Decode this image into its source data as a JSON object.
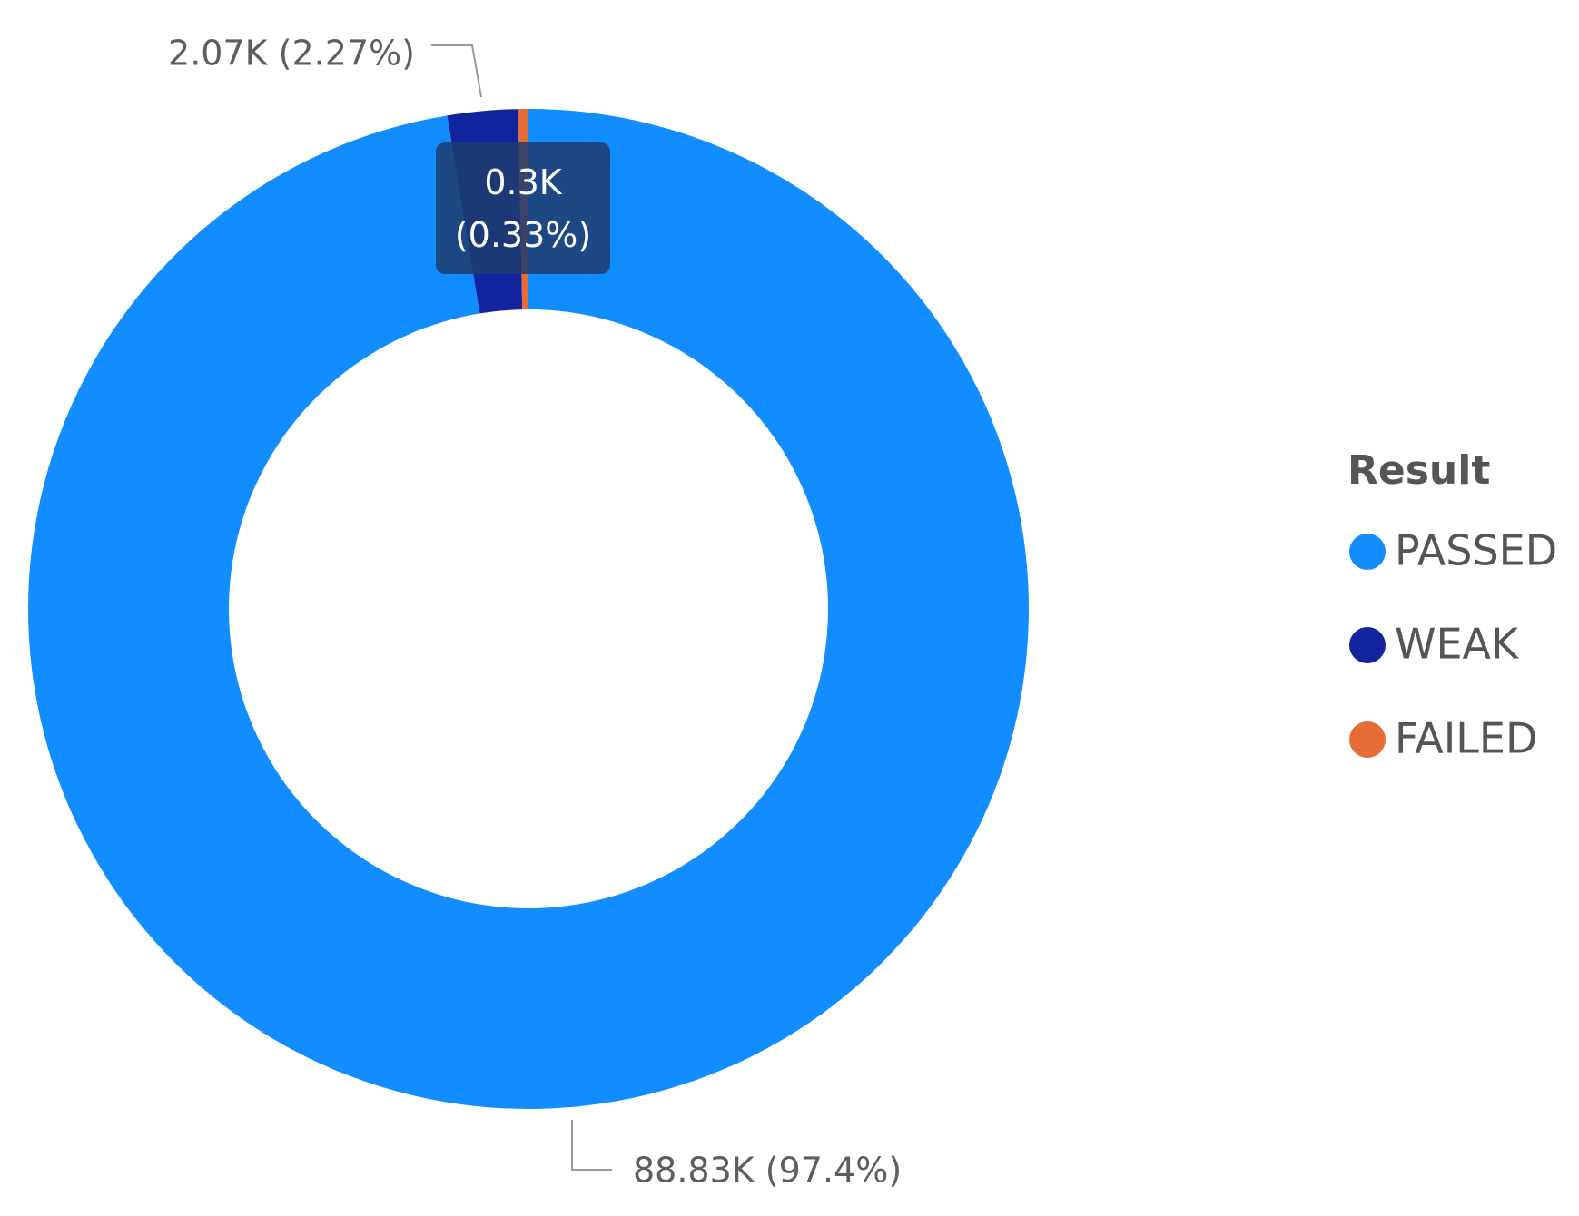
{
  "chart_data": {
    "type": "donut",
    "legend_title": "Result",
    "categories": [
      "PASSED",
      "WEAK",
      "FAILED"
    ],
    "values": [
      88830,
      2070,
      300
    ],
    "value_labels": [
      "88.83K (97.4%)",
      "2.07K (2.27%)",
      "0.3K (0.33%)"
    ],
    "colors": [
      "#118DFF",
      "#12239E",
      "#E66C37"
    ],
    "legend": "right"
  }
}
